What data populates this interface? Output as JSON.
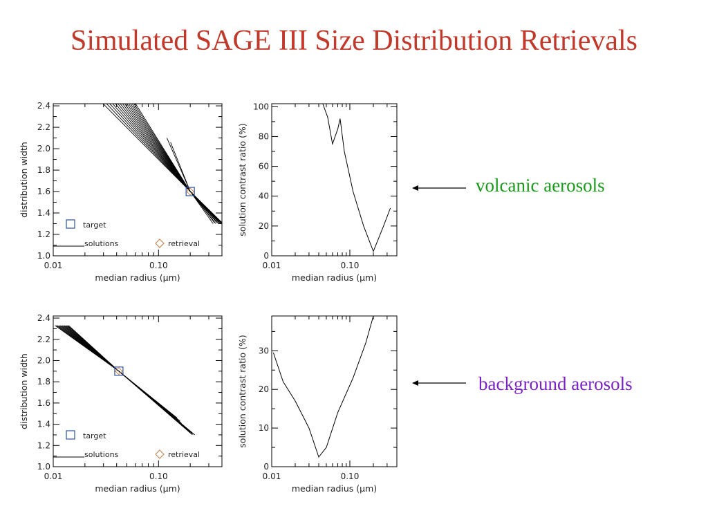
{
  "title": "Simulated SAGE III Size Distribution Retrievals",
  "colors": {
    "title": "#c0392b",
    "volcanic_label": "#1a9a1a",
    "background_label": "#7a22c4",
    "target_marker": "#2b4f9e",
    "retrieval_marker": "#c98a55",
    "line": "#000000"
  },
  "annotations": [
    {
      "text": "volcanic aerosols",
      "color": "#1a9a1a",
      "arrow": "left"
    },
    {
      "text": "background aerosols",
      "color": "#7a22c4",
      "arrow": "left"
    }
  ],
  "chart_data": [
    {
      "id": "vol-width",
      "type": "line",
      "title": "",
      "xlabel": "median radius (µm)",
      "ylabel": "distribution width",
      "xscale": "log",
      "xlim": [
        0.01,
        0.4
      ],
      "ylim": [
        1.0,
        2.42
      ],
      "x_ticks": [
        0.01,
        0.1
      ],
      "x_tick_labels": [
        "0.01",
        "0.10"
      ],
      "y_ticks": [
        1.0,
        1.2,
        1.4,
        1.6,
        1.8,
        2.0,
        2.2,
        2.4
      ],
      "y_tick_labels": [
        "1.0",
        "1.2",
        "1.4",
        "1.6",
        "1.8",
        "2.0",
        "2.2",
        "2.4"
      ],
      "series": [
        {
          "style": "solution",
          "x": [
            0.022,
            0.2,
            0.33
          ],
          "y": [
            2.55,
            1.6,
            1.3
          ]
        },
        {
          "style": "solution",
          "x": [
            0.024,
            0.2,
            0.34
          ],
          "y": [
            2.55,
            1.6,
            1.31
          ]
        },
        {
          "style": "solution",
          "x": [
            0.026,
            0.2,
            0.35
          ],
          "y": [
            2.55,
            1.6,
            1.32
          ]
        },
        {
          "style": "solution",
          "x": [
            0.028,
            0.2,
            0.35
          ],
          "y": [
            2.55,
            1.6,
            1.3
          ]
        },
        {
          "style": "solution",
          "x": [
            0.03,
            0.2,
            0.36
          ],
          "y": [
            2.55,
            1.6,
            1.31
          ]
        },
        {
          "style": "solution",
          "x": [
            0.032,
            0.2,
            0.37
          ],
          "y": [
            2.55,
            1.6,
            1.32
          ]
        },
        {
          "style": "solution",
          "x": [
            0.034,
            0.2,
            0.37
          ],
          "y": [
            2.55,
            1.6,
            1.3
          ]
        },
        {
          "style": "solution",
          "x": [
            0.036,
            0.2,
            0.38
          ],
          "y": [
            2.55,
            1.6,
            1.31
          ]
        },
        {
          "style": "solution",
          "x": [
            0.038,
            0.2,
            0.38
          ],
          "y": [
            2.55,
            1.6,
            1.3
          ]
        },
        {
          "style": "solution",
          "x": [
            0.04,
            0.2,
            0.39
          ],
          "y": [
            2.55,
            1.6,
            1.31
          ]
        },
        {
          "style": "solution",
          "x": [
            0.042,
            0.2,
            0.39
          ],
          "y": [
            2.55,
            1.6,
            1.3
          ]
        },
        {
          "style": "solution",
          "x": [
            0.044,
            0.2,
            0.4
          ],
          "y": [
            2.55,
            1.6,
            1.31
          ]
        },
        {
          "style": "solution",
          "x": [
            0.046,
            0.2,
            0.4
          ],
          "y": [
            2.55,
            1.6,
            1.3
          ]
        },
        {
          "style": "solution",
          "x": [
            0.048,
            0.2,
            0.4
          ],
          "y": [
            2.55,
            1.6,
            1.31
          ]
        },
        {
          "style": "solution",
          "x": [
            0.05,
            0.2,
            0.4
          ],
          "y": [
            2.55,
            1.6,
            1.3
          ]
        },
        {
          "style": "solution",
          "x": [
            0.12,
            0.2,
            0.34
          ],
          "y": [
            2.1,
            1.6,
            1.31
          ]
        },
        {
          "style": "solution",
          "x": [
            0.13,
            0.2,
            0.36
          ],
          "y": [
            2.06,
            1.6,
            1.31
          ]
        }
      ],
      "target": {
        "x": 0.2,
        "y": 1.6
      },
      "retrieval": {
        "x": 0.2,
        "y": 1.6
      },
      "legend": {
        "target_label": "target",
        "solutions_label": "solutions",
        "retrieval_label": "retrieval",
        "placement": "bottom"
      }
    },
    {
      "id": "vol-ratio",
      "type": "line",
      "title": "",
      "xlabel": "median radius (µm)",
      "ylabel": "solution contrast ratio (%)",
      "xscale": "log",
      "xlim": [
        0.01,
        0.4
      ],
      "ylim": [
        0,
        102
      ],
      "x_ticks": [
        0.01,
        0.1
      ],
      "x_tick_labels": [
        "0.01",
        "0.10"
      ],
      "y_ticks": [
        0,
        20,
        40,
        60,
        80,
        100
      ],
      "y_tick_labels": [
        "0",
        "20",
        "40",
        "60",
        "80",
        "100"
      ],
      "series": [
        {
          "style": "solid",
          "x": [
            0.045,
            0.052,
            0.06,
            0.07,
            0.075,
            0.085,
            0.11,
            0.15,
            0.2,
            0.27,
            0.33
          ],
          "y": [
            102,
            93,
            75,
            85,
            92,
            70,
            43,
            20,
            3,
            20,
            32
          ]
        }
      ]
    },
    {
      "id": "bg-width",
      "type": "line",
      "title": "",
      "xlabel": "median radius (µm)",
      "ylabel": "distribution width",
      "xscale": "log",
      "xlim": [
        0.01,
        0.4
      ],
      "ylim": [
        1.0,
        2.42
      ],
      "x_ticks": [
        0.01,
        0.1
      ],
      "x_tick_labels": [
        "0.01",
        "0.10"
      ],
      "y_ticks": [
        1.0,
        1.2,
        1.4,
        1.6,
        1.8,
        2.0,
        2.2,
        2.4
      ],
      "y_tick_labels": [
        "1.0",
        "1.2",
        "1.4",
        "1.6",
        "1.8",
        "2.0",
        "2.2",
        "2.4"
      ],
      "series": [
        {
          "style": "solution",
          "x": [
            0.0104,
            0.042,
            0.22
          ],
          "y": [
            2.33,
            1.9,
            1.3
          ]
        },
        {
          "style": "solution",
          "x": [
            0.0107,
            0.042,
            0.21
          ],
          "y": [
            2.33,
            1.9,
            1.31
          ]
        },
        {
          "style": "solution",
          "x": [
            0.011,
            0.042,
            0.2
          ],
          "y": [
            2.33,
            1.9,
            1.33
          ]
        },
        {
          "style": "solution",
          "x": [
            0.0113,
            0.042,
            0.19
          ],
          "y": [
            2.33,
            1.9,
            1.35
          ]
        },
        {
          "style": "solution",
          "x": [
            0.0116,
            0.042,
            0.18
          ],
          "y": [
            2.33,
            1.9,
            1.37
          ]
        },
        {
          "style": "solution",
          "x": [
            0.0119,
            0.042,
            0.17
          ],
          "y": [
            2.33,
            1.9,
            1.39
          ]
        },
        {
          "style": "solution",
          "x": [
            0.0122,
            0.042,
            0.165
          ],
          "y": [
            2.33,
            1.9,
            1.41
          ]
        },
        {
          "style": "solution",
          "x": [
            0.0125,
            0.042,
            0.16
          ],
          "y": [
            2.33,
            1.9,
            1.43
          ]
        },
        {
          "style": "solution",
          "x": [
            0.0128,
            0.042,
            0.155
          ],
          "y": [
            2.33,
            1.9,
            1.44
          ]
        },
        {
          "style": "solution",
          "x": [
            0.0131,
            0.042,
            0.15
          ],
          "y": [
            2.33,
            1.9,
            1.46
          ]
        },
        {
          "style": "solution",
          "x": [
            0.0134,
            0.042,
            0.22
          ],
          "y": [
            2.33,
            1.9,
            1.3
          ]
        },
        {
          "style": "solution",
          "x": [
            0.0137,
            0.042,
            0.21
          ],
          "y": [
            2.33,
            1.9,
            1.3
          ]
        },
        {
          "style": "solution",
          "x": [
            0.014,
            0.042,
            0.2
          ],
          "y": [
            2.33,
            1.9,
            1.32
          ]
        }
      ],
      "target": {
        "x": 0.042,
        "y": 1.9
      },
      "retrieval": {
        "x": 0.042,
        "y": 1.9
      },
      "legend": {
        "target_label": "target",
        "solutions_label": "solutions",
        "retrieval_label": "retrieval",
        "placement": "bottom"
      }
    },
    {
      "id": "bg-ratio",
      "type": "line",
      "title": "",
      "xlabel": "median radius (µm)",
      "ylabel": "solution contrast ratio (%)",
      "xscale": "log",
      "xlim": [
        0.01,
        0.4
      ],
      "ylim": [
        0,
        39
      ],
      "x_ticks": [
        0.01,
        0.1
      ],
      "x_tick_labels": [
        "0.01",
        "0.10"
      ],
      "y_ticks": [
        0,
        10,
        20,
        30
      ],
      "y_tick_labels": [
        "0",
        "10",
        "20",
        "30"
      ],
      "series": [
        {
          "style": "solid",
          "x": [
            0.0105,
            0.014,
            0.02,
            0.03,
            0.04,
            0.05,
            0.07,
            0.11,
            0.16,
            0.2
          ],
          "y": [
            29.5,
            22,
            17,
            10,
            2.5,
            5,
            14,
            23,
            32,
            39
          ]
        }
      ]
    }
  ]
}
